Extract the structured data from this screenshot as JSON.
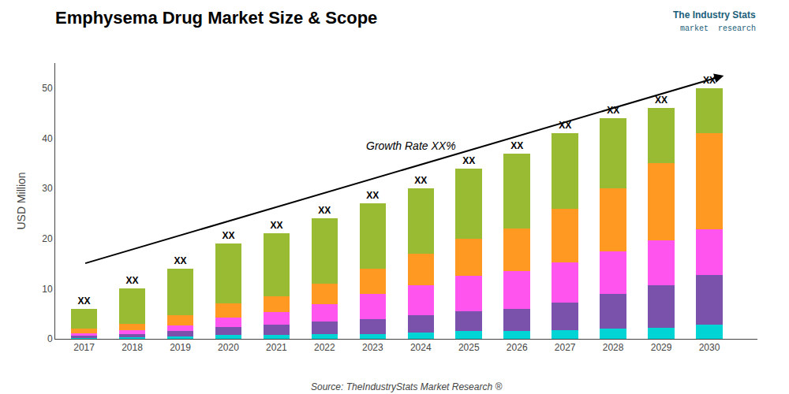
{
  "chart_data": {
    "type": "bar",
    "stacked": true,
    "title": "Emphysema Drug Market Size & Scope",
    "ylabel": "USD Million",
    "x": [
      2017,
      2018,
      2019,
      2020,
      2021,
      2022,
      2023,
      2024,
      2025,
      2026,
      2027,
      2028,
      2029,
      2030
    ],
    "xlim": [
      2016.4,
      2031.0
    ],
    "xticks": [
      2017,
      2018,
      2019,
      2020,
      2021,
      2022,
      2023,
      2024,
      2025,
      2026,
      2027,
      2028,
      2029,
      2030
    ],
    "series": [
      {
        "color": "#00D4D4",
        "values": [
          0.2,
          0.3,
          0.5,
          0.8,
          0.8,
          0.9,
          1.0,
          1.2,
          1.5,
          1.5,
          1.8,
          2.0,
          2.2,
          2.8
        ]
      },
      {
        "color": "#7B52AB",
        "values": [
          0.4,
          0.7,
          1.0,
          1.5,
          2.0,
          2.5,
          3.0,
          3.5,
          4.0,
          4.5,
          5.5,
          7.0,
          8.5,
          10.0
        ]
      },
      {
        "color": "#FF55EE",
        "values": [
          0.5,
          0.8,
          1.2,
          2.0,
          2.5,
          3.5,
          5.0,
          6.0,
          7.0,
          7.5,
          8.0,
          8.5,
          9.0,
          9.0
        ]
      },
      {
        "color": "#FF9922",
        "values": [
          0.9,
          1.2,
          2.0,
          2.7,
          3.2,
          4.1,
          5.0,
          6.3,
          7.5,
          8.5,
          10.7,
          12.5,
          15.3,
          19.2
        ]
      },
      {
        "color": "#99BB33",
        "values": [
          4.0,
          7.0,
          9.3,
          12.0,
          12.5,
          13.0,
          13.0,
          13.0,
          14.0,
          15.0,
          15.0,
          14.0,
          11.0,
          9.0
        ]
      }
    ],
    "ylim": [
      0,
      55
    ],
    "yticks": [
      0,
      10,
      20,
      30,
      40,
      50
    ],
    "grid": false,
    "bar_label": "XX",
    "arrow": {
      "x": [
        2017.0,
        2030.3
      ],
      "y": [
        15.0,
        52.5
      ]
    },
    "annotations": [
      {
        "text": "Growth Rate XX%",
        "x": 2023.8,
        "y": 37.0
      }
    ],
    "source": "Source: TheIndustryStats Market Research ®",
    "logo": [
      "The Industry Stats",
      "market  research"
    ]
  }
}
